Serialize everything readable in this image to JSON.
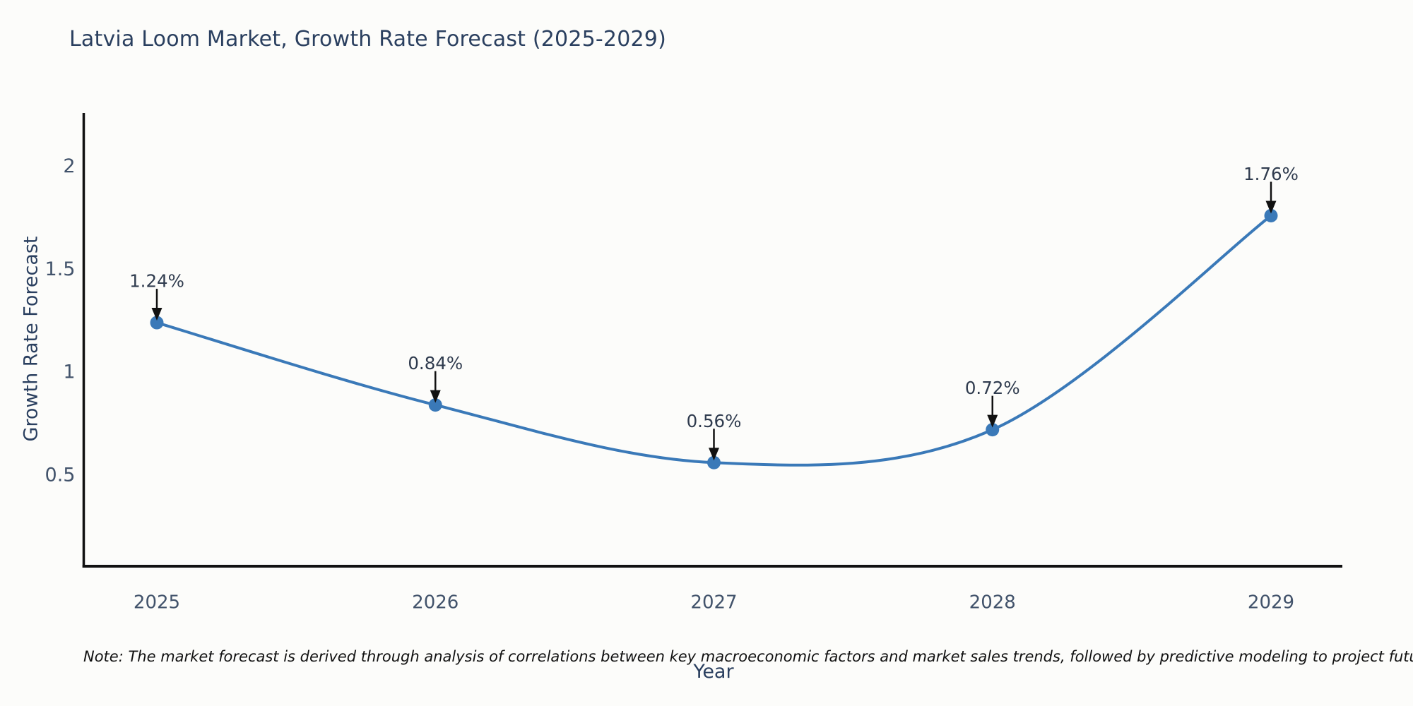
{
  "page": {
    "background_color": "#fcfcfa",
    "title_color": "#2a3f5f",
    "tick_label_color": "#42536b",
    "annotation_text_color": "#2f3b4e",
    "axis_line_color": "#111111",
    "arrow_color": "#111111"
  },
  "chart_data": {
    "type": "line",
    "title": "Latvia Loom Market, Growth Rate Forecast (2025-2029)",
    "xlabel": "Year",
    "ylabel": "Growth Rate Forecast",
    "x": [
      2025,
      2026,
      2027,
      2028,
      2029
    ],
    "y": [
      1.24,
      0.84,
      0.56,
      0.72,
      1.76
    ],
    "point_labels": [
      "1.24%",
      "0.84%",
      "0.56%",
      "0.72%",
      "1.76%"
    ],
    "x_tick_labels": [
      "2025",
      "2026",
      "2027",
      "2028",
      "2029"
    ],
    "y_tick_values": [
      0.5,
      1,
      1.5,
      2
    ],
    "y_tick_labels": [
      "0.5",
      "1",
      "1.5",
      "2"
    ],
    "xlim": [
      2024.74,
      2025.26
    ],
    "ylim": [
      0.057,
      2.2
    ],
    "line_color": "#3a79b8",
    "marker_color": "#3a79b8",
    "line_shape": "spline",
    "grid": false,
    "legend_position": "none",
    "annotations_have_arrows": true
  },
  "note": {
    "text": "Note: The market forecast is derived through analysis of correlations between key macroeconomic factors and market sales trends, followed by predictive modeling to project future sales"
  }
}
